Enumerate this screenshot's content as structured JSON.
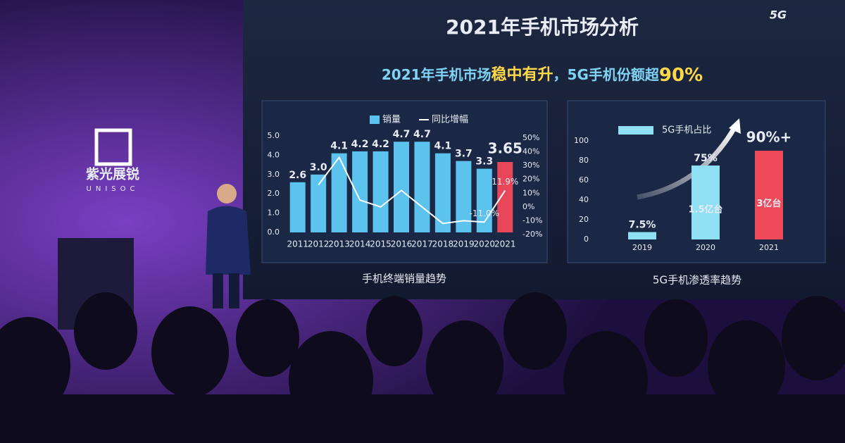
{
  "slide": {
    "title": "2021年手机市场分析",
    "subtitle": [
      "2021年手机市场",
      "稳中有升",
      "，5G手机份额超",
      "90%"
    ]
  },
  "brand": {
    "name": "紫光展锐",
    "latin": "UNISOC",
    "corner": "5G"
  },
  "chart_data": [
    {
      "type": "bar",
      "title": "手机终端销量趋势",
      "legend": "top",
      "categories": [
        "2011",
        "2012",
        "2013",
        "2014",
        "2015",
        "2016",
        "2017",
        "2018",
        "2019",
        "2020",
        "2021"
      ],
      "series": [
        {
          "name": "销量",
          "color": "#5cc2ee",
          "colors": [
            "#5cc2ee",
            "#5cc2ee",
            "#5cc2ee",
            "#5cc2ee",
            "#5cc2ee",
            "#5cc2ee",
            "#5cc2ee",
            "#5cc2ee",
            "#5cc2ee",
            "#5cc2ee",
            "#e8475a"
          ],
          "values": [
            2.6,
            3.0,
            4.1,
            4.2,
            4.2,
            4.7,
            4.7,
            4.1,
            3.7,
            3.3,
            3.65
          ],
          "value_labels": [
            "2.6",
            "3.0",
            "4.1",
            "4.2",
            "4.2",
            "4.7",
            "4.7",
            "4.1",
            "3.7",
            "3.3",
            "3.65"
          ]
        },
        {
          "name": "同比增幅",
          "type": "line",
          "color": "#ffffff",
          "axis": "y2",
          "values": [
            null,
            16,
            36,
            5,
            0,
            12,
            0,
            -12,
            -10,
            -11,
            11.9
          ],
          "value_labels": [
            null,
            null,
            null,
            null,
            null,
            null,
            null,
            null,
            null,
            "-11.0%",
            "11.9%"
          ]
        }
      ],
      "ylim": [
        0,
        5
      ],
      "yticks": [
        {
          "value": 0,
          "label": "0.0"
        },
        {
          "value": 1,
          "label": "1.0"
        },
        {
          "value": 2,
          "label": "2.0"
        },
        {
          "value": 3,
          "label": "3.0"
        },
        {
          "value": 4,
          "label": "4.0"
        },
        {
          "value": 5,
          "label": "5.0"
        }
      ],
      "y2lim": [
        -20,
        50
      ],
      "y2ticks": [
        {
          "value": -20,
          "label": "-20%"
        },
        {
          "value": -10,
          "label": "-10%"
        },
        {
          "value": 0,
          "label": "0%"
        },
        {
          "value": 10,
          "label": "10%"
        },
        {
          "value": 20,
          "label": "20%"
        },
        {
          "value": 30,
          "label": "30%"
        },
        {
          "value": 40,
          "label": "40%"
        },
        {
          "value": 50,
          "label": "50%"
        }
      ]
    },
    {
      "type": "bar",
      "title": "5G手机渗透率趋势",
      "legend": "top",
      "categories": [
        "2019",
        "2020",
        "2021"
      ],
      "series": [
        {
          "name": "5G手机占比",
          "color": "#8fe0f2",
          "colors": [
            "#8fe0f2",
            "#8fe0f2",
            "#f04a5a"
          ],
          "values": [
            7.5,
            75,
            90
          ],
          "value_labels": [
            "7.5%",
            "75%",
            "90%+"
          ],
          "inner_labels": [
            null,
            "1.5亿台",
            "3亿台"
          ]
        }
      ],
      "ylim": [
        0,
        100
      ],
      "yticks": [
        0,
        20,
        40,
        60,
        80,
        100
      ]
    }
  ]
}
